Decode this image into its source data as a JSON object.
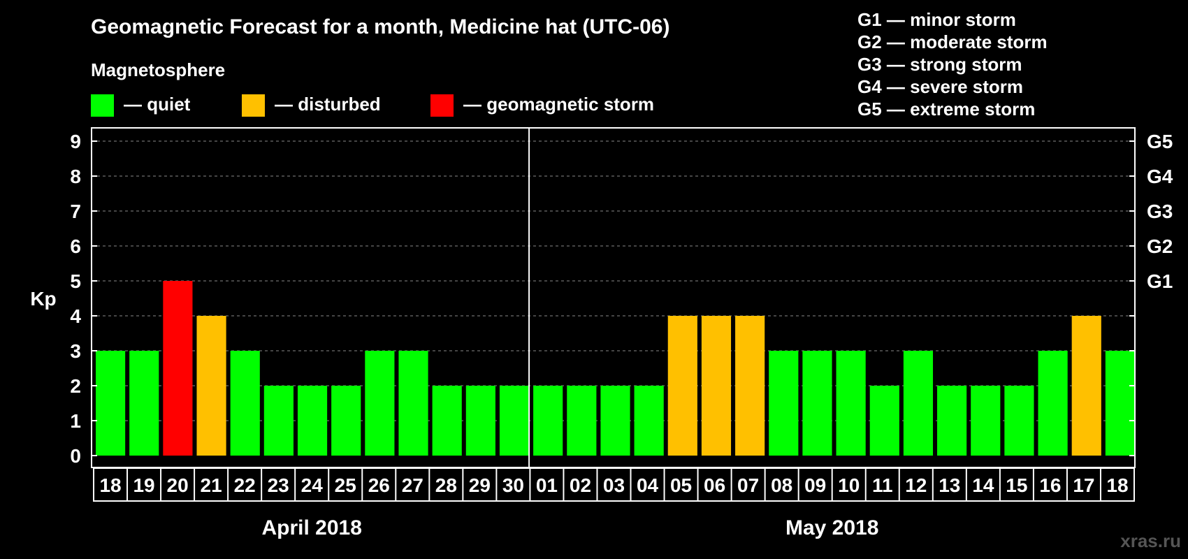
{
  "chart_data": {
    "type": "bar",
    "title": "Geomagnetic Forecast for a month, Medicine hat (UTC-06)",
    "legend": {
      "heading": "Magnetosphere",
      "items": [
        {
          "label": "— quiet",
          "color": "#00ff00"
        },
        {
          "label": "— disturbed",
          "color": "#ffc000"
        },
        {
          "label": "— geomagnetic storm",
          "color": "#ff0000"
        }
      ]
    },
    "storm_scale": [
      "G1 — minor storm",
      "G2 — moderate storm",
      "G3 — strong storm",
      "G4 — severe storm",
      "G5 — extreme storm"
    ],
    "ylabel": "Kp",
    "ylim": [
      0,
      9
    ],
    "yticks": [
      0,
      1,
      2,
      3,
      4,
      5,
      6,
      7,
      8,
      9
    ],
    "right_ticks": [
      {
        "value": 5,
        "label": "G1"
      },
      {
        "value": 6,
        "label": "G2"
      },
      {
        "value": 7,
        "label": "G3"
      },
      {
        "value": 8,
        "label": "G4"
      },
      {
        "value": 9,
        "label": "G5"
      }
    ],
    "grid": "dashed horizontal",
    "months": [
      {
        "label": "April 2018",
        "days": [
          "18",
          "19",
          "20",
          "21",
          "22",
          "23",
          "24",
          "25",
          "26",
          "27",
          "28",
          "29",
          "30"
        ]
      },
      {
        "label": "May 2018",
        "days": [
          "01",
          "02",
          "03",
          "04",
          "05",
          "06",
          "07",
          "08",
          "09",
          "10",
          "11",
          "12",
          "13",
          "14",
          "15",
          "16",
          "17",
          "18"
        ]
      }
    ],
    "categories": [
      "18",
      "19",
      "20",
      "21",
      "22",
      "23",
      "24",
      "25",
      "26",
      "27",
      "28",
      "29",
      "30",
      "01",
      "02",
      "03",
      "04",
      "05",
      "06",
      "07",
      "08",
      "09",
      "10",
      "11",
      "12",
      "13",
      "14",
      "15",
      "16",
      "17",
      "18"
    ],
    "values": [
      3,
      3,
      5,
      4,
      3,
      2,
      2,
      2,
      3,
      3,
      2,
      2,
      2,
      2,
      2,
      2,
      2,
      4,
      4,
      4,
      3,
      3,
      3,
      2,
      3,
      2,
      2,
      2,
      3,
      4,
      3
    ],
    "status": [
      "quiet",
      "quiet",
      "geomagnetic storm",
      "disturbed",
      "quiet",
      "quiet",
      "quiet",
      "quiet",
      "quiet",
      "quiet",
      "quiet",
      "quiet",
      "quiet",
      "quiet",
      "quiet",
      "quiet",
      "quiet",
      "disturbed",
      "disturbed",
      "disturbed",
      "quiet",
      "quiet",
      "quiet",
      "quiet",
      "quiet",
      "quiet",
      "quiet",
      "quiet",
      "quiet",
      "disturbed",
      "quiet"
    ],
    "status_colors": {
      "quiet": "#00ff00",
      "disturbed": "#ffc000",
      "geomagnetic storm": "#ff0000"
    }
  },
  "credit": "xras.ru"
}
